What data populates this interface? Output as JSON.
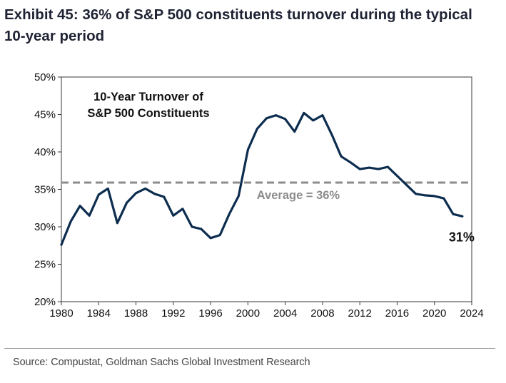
{
  "title": "Exhibit 45: 36% of S&P 500 constituents turnover during the typical 10-year period",
  "source": "Source: Compustat, Goldman Sachs Global Investment Research",
  "colors": {
    "line": "#0d2d4f",
    "average": "#8c8c8c",
    "frame": "#3a3a3a"
  },
  "chart_data": {
    "type": "line",
    "title": "10-Year Turnover of S&P 500 Constituents",
    "title_lines": [
      "10-Year Turnover of",
      "S&P 500 Constituents"
    ],
    "xlabel": "",
    "ylabel": "",
    "xlim": [
      1980,
      2024
    ],
    "ylim": [
      20,
      50
    ],
    "x_ticks": [
      1980,
      1984,
      1988,
      1992,
      1996,
      2000,
      2004,
      2008,
      2012,
      2016,
      2020,
      2024
    ],
    "y_ticks": [
      20,
      25,
      30,
      35,
      40,
      45,
      50
    ],
    "y_tick_labels": [
      "20%",
      "25%",
      "30%",
      "35%",
      "40%",
      "45%",
      "50%"
    ],
    "grid": false,
    "series": [
      {
        "x": [
          1980,
          1981,
          1982,
          1983,
          1984,
          1985,
          1986,
          1987,
          1988,
          1989,
          1990,
          1991,
          1992,
          1993,
          1994,
          1995,
          1996,
          1997,
          1998,
          1999,
          2000,
          2001,
          2002,
          2003,
          2004,
          2005,
          2006,
          2007,
          2008,
          2009,
          2010,
          2011,
          2012,
          2013,
          2014,
          2015,
          2016,
          2017,
          2018,
          2019,
          2020,
          2021,
          2022,
          2023
        ],
        "values": [
          27.6,
          30.7,
          32.8,
          31.5,
          34.3,
          35.1,
          30.5,
          33.2,
          34.5,
          35.1,
          34.4,
          34.0,
          31.5,
          32.4,
          30.0,
          29.7,
          28.5,
          28.9,
          31.7,
          34.1,
          40.3,
          43.1,
          44.5,
          44.9,
          44.4,
          42.7,
          45.2,
          44.2,
          44.9,
          42.3,
          39.4,
          38.6,
          37.7,
          37.9,
          37.7,
          38.0,
          36.8,
          35.6,
          34.4,
          34.2,
          34.1,
          33.8,
          31.7,
          31.4
        ]
      }
    ],
    "average": {
      "value": 35.9,
      "label": "Average = 36%"
    },
    "end_label": "31%"
  }
}
